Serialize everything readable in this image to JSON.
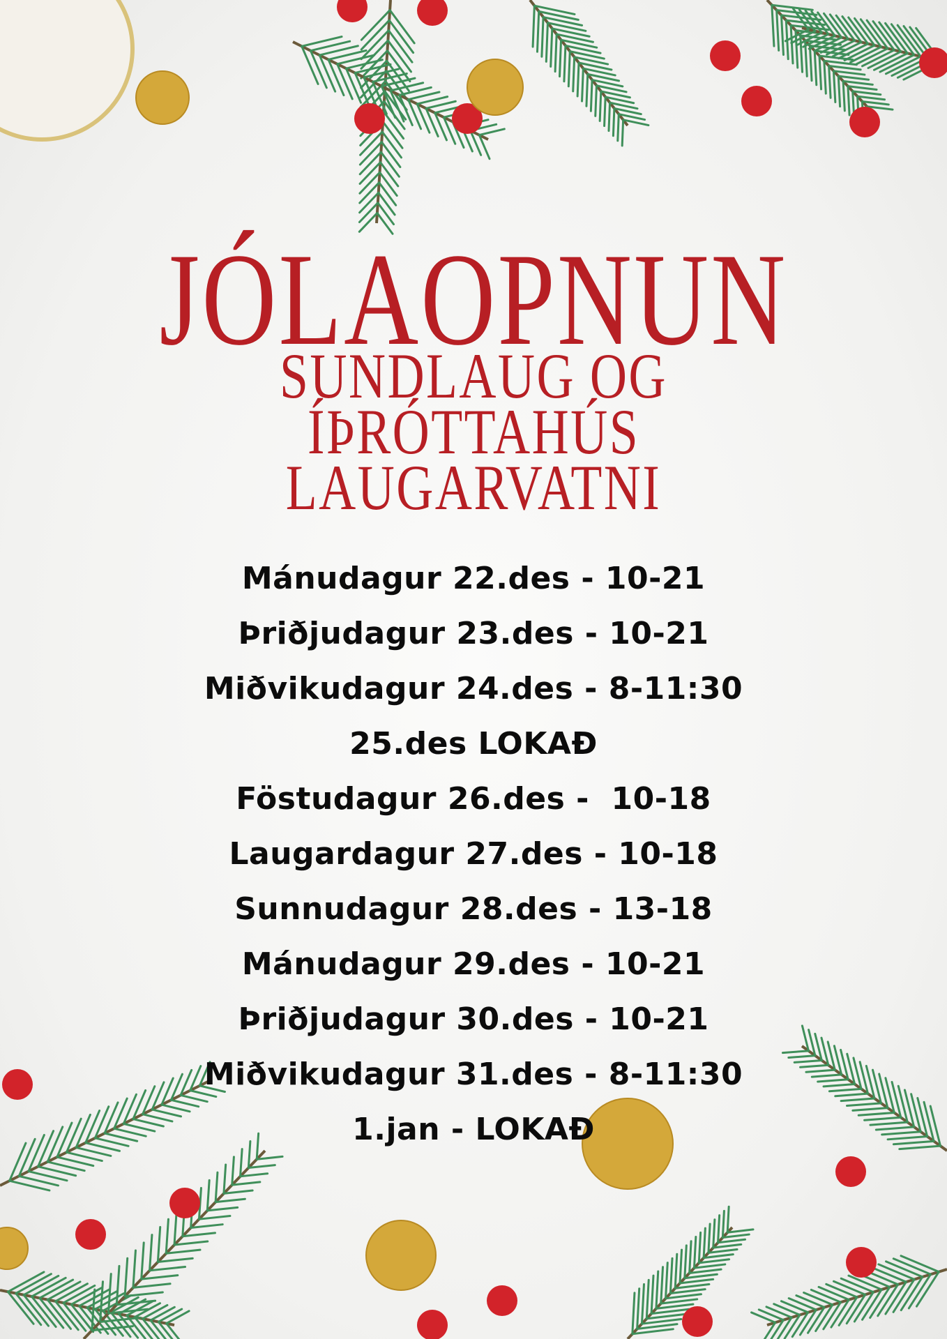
{
  "title": "JÓLAOPNUN",
  "subtitle": [
    "SUNDLAUG OG",
    "ÍÞRÓTTAHÚS",
    "LAUGARVATNI"
  ],
  "schedule": [
    "Mánudagur 22.des - 10-21",
    "Þriðjudagur 23.des - 10-21",
    "Miðvikudagur 24.des - 8-11:30",
    "25.des LOKAÐ",
    "Föstudagur 26.des -  10-18",
    "Laugardagur 27.des - 10-18",
    "Sunnudagur 28.des - 13-18",
    "Mánudagur 29.des - 10-21",
    "Þriðjudagur 30.des - 10-21",
    "Miðvikudagur 31.des - 8-11:30",
    "1.jan - LOKAÐ"
  ],
  "colors": {
    "title": "#b71f24",
    "text": "#0c0c0c",
    "pine": "#3f8f5a",
    "berry": "#d2232a",
    "gold": "#d4a83a"
  }
}
